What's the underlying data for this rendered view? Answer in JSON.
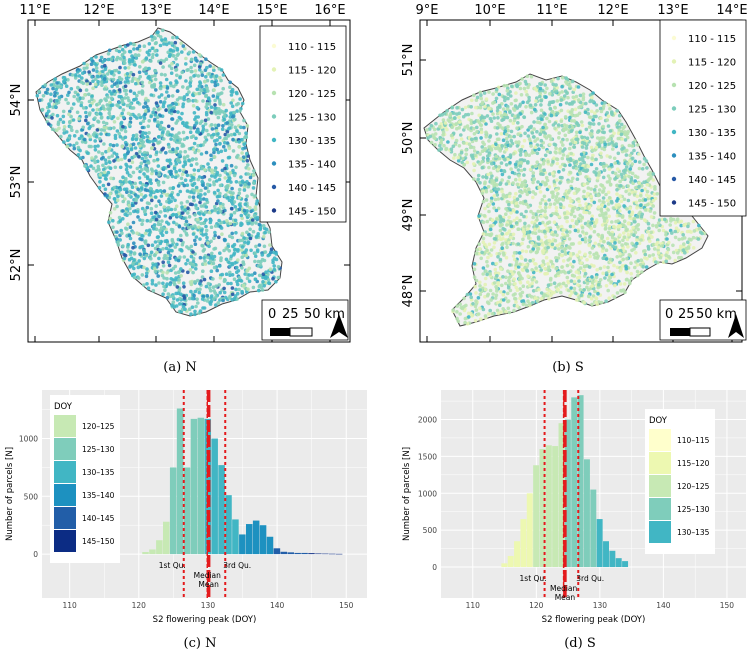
{
  "maps": [
    {
      "id": "N",
      "caption": "(a) N",
      "lon_labels": [
        "11°E",
        "12°E",
        "13°E",
        "14°E",
        "15°E",
        "16°E"
      ],
      "lat_labels": [
        "54°N",
        "53°N",
        "52°N"
      ],
      "legend": [
        "110 - 115",
        "115 - 120",
        "120 - 125",
        "125 - 130",
        "130 - 135",
        "135 - 140",
        "140 - 145",
        "145 - 150"
      ],
      "scale": {
        "labels": [
          "0",
          "25",
          "50 km"
        ]
      }
    },
    {
      "id": "S",
      "caption": "(b) S",
      "lon_labels": [
        "9°E",
        "10°E",
        "11°E",
        "12°E",
        "13°E",
        "14°E",
        "15°E"
      ],
      "lat_labels": [
        "51°N",
        "50°N",
        "49°N",
        "48°N"
      ],
      "legend": [
        "110 - 115",
        "115 - 120",
        "120 - 125",
        "125 - 130",
        "130 - 135",
        "135 - 140",
        "140 - 145",
        "145 - 150"
      ],
      "scale": {
        "labels": [
          "0",
          "25",
          "50 km"
        ]
      }
    }
  ],
  "legend_colors": [
    "#fbfbd3",
    "#e3f2b5",
    "#b7e2b1",
    "#7ccdbb",
    "#41b6c4",
    "#2c8fbe",
    "#2659a6",
    "#1d3a88"
  ],
  "histograms": [
    {
      "id": "N",
      "caption": "(c) N",
      "ylabel": "Number of parcels [N]",
      "xlabel": "S2 flowering peak (DOY)",
      "x_ticks": [
        "110",
        "120",
        "130",
        "140",
        "150"
      ],
      "y_ticks": [
        "0",
        "500",
        "1000"
      ],
      "xlim": [
        106,
        153
      ],
      "ylim": [
        -380,
        1420
      ],
      "legend_title": "DOY",
      "legend": [
        {
          "label": "120–125",
          "color": "#c7e9b4"
        },
        {
          "label": "125–130",
          "color": "#7fcdbb"
        },
        {
          "label": "130–135",
          "color": "#41b6c4"
        },
        {
          "label": "135–140",
          "color": "#1d91c0"
        },
        {
          "label": "140–145",
          "color": "#225ea8"
        },
        {
          "label": "145–150",
          "color": "#0c2c84"
        }
      ],
      "bins": [
        {
          "x": 121,
          "v": 18
        },
        {
          "x": 122,
          "v": 40
        },
        {
          "x": 123,
          "v": 120
        },
        {
          "x": 124,
          "v": 280
        },
        {
          "x": 125,
          "v": 750
        },
        {
          "x": 126,
          "v": 1260
        },
        {
          "x": 127,
          "v": 750
        },
        {
          "x": 128,
          "v": 1170
        },
        {
          "x": 129,
          "v": 1180
        },
        {
          "x": 130,
          "v": 1170
        },
        {
          "x": 131,
          "v": 1000
        },
        {
          "x": 132,
          "v": 770
        },
        {
          "x": 133,
          "v": 510
        },
        {
          "x": 134,
          "v": 300
        },
        {
          "x": 135,
          "v": 170
        },
        {
          "x": 136,
          "v": 260
        },
        {
          "x": 137,
          "v": 290
        },
        {
          "x": 138,
          "v": 250
        },
        {
          "x": 139,
          "v": 150
        },
        {
          "x": 140,
          "v": 50
        },
        {
          "x": 141,
          "v": 20
        },
        {
          "x": 142,
          "v": 15
        },
        {
          "x": 143,
          "v": 10
        },
        {
          "x": 144,
          "v": 10
        },
        {
          "x": 145,
          "v": 8
        },
        {
          "x": 146,
          "v": 5
        },
        {
          "x": 147,
          "v": 4
        },
        {
          "x": 148,
          "v": 3
        },
        {
          "x": 149,
          "v": 2
        }
      ],
      "stats": {
        "q1": 126.5,
        "median": 129.9,
        "mean": 130.1,
        "q3": 132.5
      },
      "stat_labels": {
        "q1": "1st Qu.",
        "q3": "3rd Qu.",
        "median": "Median",
        "mean": "Mean"
      }
    },
    {
      "id": "S",
      "caption": "(d) S",
      "ylabel": "Number of parcels [N]",
      "xlabel": "S2 flowering peak (DOY)",
      "x_ticks": [
        "110",
        "120",
        "130",
        "140",
        "150"
      ],
      "y_ticks": [
        "0",
        "500",
        "1000",
        "1500",
        "2000"
      ],
      "xlim": [
        105,
        153
      ],
      "ylim": [
        -420,
        2400
      ],
      "legend_title": "DOY",
      "legend": [
        {
          "label": "110–115",
          "color": "#ffffcc"
        },
        {
          "label": "115–120",
          "color": "#edf8b1"
        },
        {
          "label": "120–125",
          "color": "#c7e9b4"
        },
        {
          "label": "125–130",
          "color": "#7fcdbb"
        },
        {
          "label": "130–135",
          "color": "#41b6c4"
        }
      ],
      "bins": [
        {
          "x": 115,
          "v": 50
        },
        {
          "x": 116,
          "v": 150
        },
        {
          "x": 117,
          "v": 350
        },
        {
          "x": 118,
          "v": 650
        },
        {
          "x": 119,
          "v": 1000
        },
        {
          "x": 120,
          "v": 1380
        },
        {
          "x": 121,
          "v": 1600
        },
        {
          "x": 122,
          "v": 1650
        },
        {
          "x": 123,
          "v": 1640
        },
        {
          "x": 124,
          "v": 1950
        },
        {
          "x": 125,
          "v": 2000
        },
        {
          "x": 126,
          "v": 2300
        },
        {
          "x": 127,
          "v": 2330
        },
        {
          "x": 128,
          "v": 1460
        },
        {
          "x": 129,
          "v": 1050
        },
        {
          "x": 130,
          "v": 650
        },
        {
          "x": 131,
          "v": 350
        },
        {
          "x": 132,
          "v": 220
        },
        {
          "x": 133,
          "v": 120
        },
        {
          "x": 134,
          "v": 80
        }
      ],
      "stats": {
        "q1": 121.3,
        "median": 124.3,
        "mean": 124.5,
        "q3": 126.6
      },
      "stat_labels": {
        "q1": "1st Qu.",
        "q3": "3rd Qu.",
        "median": "Median",
        "mean": "Mean"
      }
    }
  ]
}
